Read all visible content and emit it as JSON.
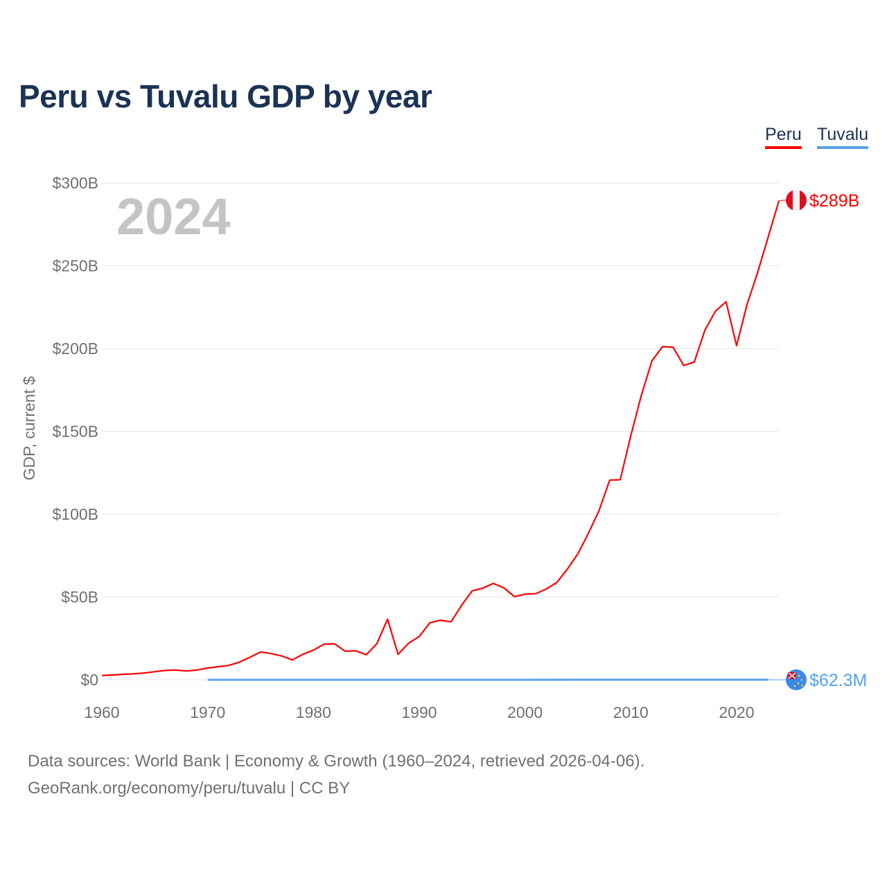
{
  "chart_data": {
    "type": "line",
    "title": "Peru vs Tuvalu GDP by year",
    "ylabel": "GDP, current $",
    "xlabel": "",
    "xlim": [
      1960,
      2024
    ],
    "ylim": [
      0,
      300
    ],
    "y_unit": "billions USD",
    "grid": true,
    "legend_placement": "top-right",
    "year_watermark": "2024",
    "x_ticks": [
      1960,
      1970,
      1980,
      1990,
      2000,
      2010,
      2020
    ],
    "x_tick_labels": [
      "1960",
      "1970",
      "1980",
      "1990",
      "2000",
      "2010",
      "2020"
    ],
    "y_ticks": [
      0,
      50,
      100,
      150,
      200,
      250,
      300
    ],
    "y_tick_labels": [
      "$0",
      "$50B",
      "$100B",
      "$150B",
      "$200B",
      "$250B",
      "$300B"
    ],
    "series": [
      {
        "name": "Peru",
        "color": "#ff0000",
        "end_label": "$289B",
        "flag_icon": "peru-flag-icon",
        "x": [
          1960,
          1961,
          1962,
          1963,
          1964,
          1965,
          1966,
          1967,
          1968,
          1969,
          1970,
          1971,
          1972,
          1973,
          1974,
          1975,
          1976,
          1977,
          1978,
          1979,
          1980,
          1981,
          1982,
          1983,
          1984,
          1985,
          1986,
          1987,
          1988,
          1989,
          1990,
          1991,
          1992,
          1993,
          1994,
          1995,
          1996,
          1997,
          1998,
          1999,
          2000,
          2001,
          2002,
          2003,
          2004,
          2005,
          2006,
          2007,
          2008,
          2009,
          2010,
          2011,
          2012,
          2013,
          2014,
          2015,
          2016,
          2017,
          2018,
          2019,
          2020,
          2021,
          2022,
          2023,
          2024
        ],
        "values": [
          2.6,
          2.9,
          3.3,
          3.6,
          4.1,
          4.9,
          5.7,
          5.9,
          5.3,
          5.9,
          7.1,
          7.9,
          8.7,
          10.7,
          13.6,
          16.8,
          15.8,
          14.4,
          12.0,
          15.4,
          17.9,
          21.5,
          21.7,
          17.3,
          17.5,
          15.1,
          21.9,
          36.6,
          15.4,
          22.1,
          26.2,
          34.4,
          36.0,
          35.0,
          44.9,
          53.7,
          55.3,
          58.2,
          55.5,
          50.2,
          51.7,
          52.0,
          54.8,
          58.7,
          66.8,
          76.1,
          88.6,
          102.2,
          120.6,
          120.8,
          147.5,
          171.8,
          192.6,
          201.2,
          200.8,
          189.8,
          191.9,
          211.0,
          222.6,
          228.3,
          201.7,
          226.9,
          246.2,
          267.6,
          289.2
        ]
      },
      {
        "name": "Tuvalu",
        "color": "#5aa0ea",
        "end_label": "$62.3M",
        "flag_icon": "tuvalu-flag-icon",
        "x": [
          1970,
          1975,
          1980,
          1985,
          1990,
          1995,
          2000,
          2005,
          2010,
          2015,
          2019,
          2020,
          2021,
          2022,
          2023
        ],
        "values": [
          0.002,
          0.004,
          0.006,
          0.008,
          0.01,
          0.012,
          0.014,
          0.022,
          0.032,
          0.037,
          0.049,
          0.049,
          0.06,
          0.059,
          0.0623
        ]
      }
    ]
  },
  "footer": {
    "sources": "Data sources: World Bank | Economy & Growth (1960–2024, retrieved 2026-04-06).",
    "credit": "GeoRank.org/economy/peru/tuvalu | CC BY"
  }
}
